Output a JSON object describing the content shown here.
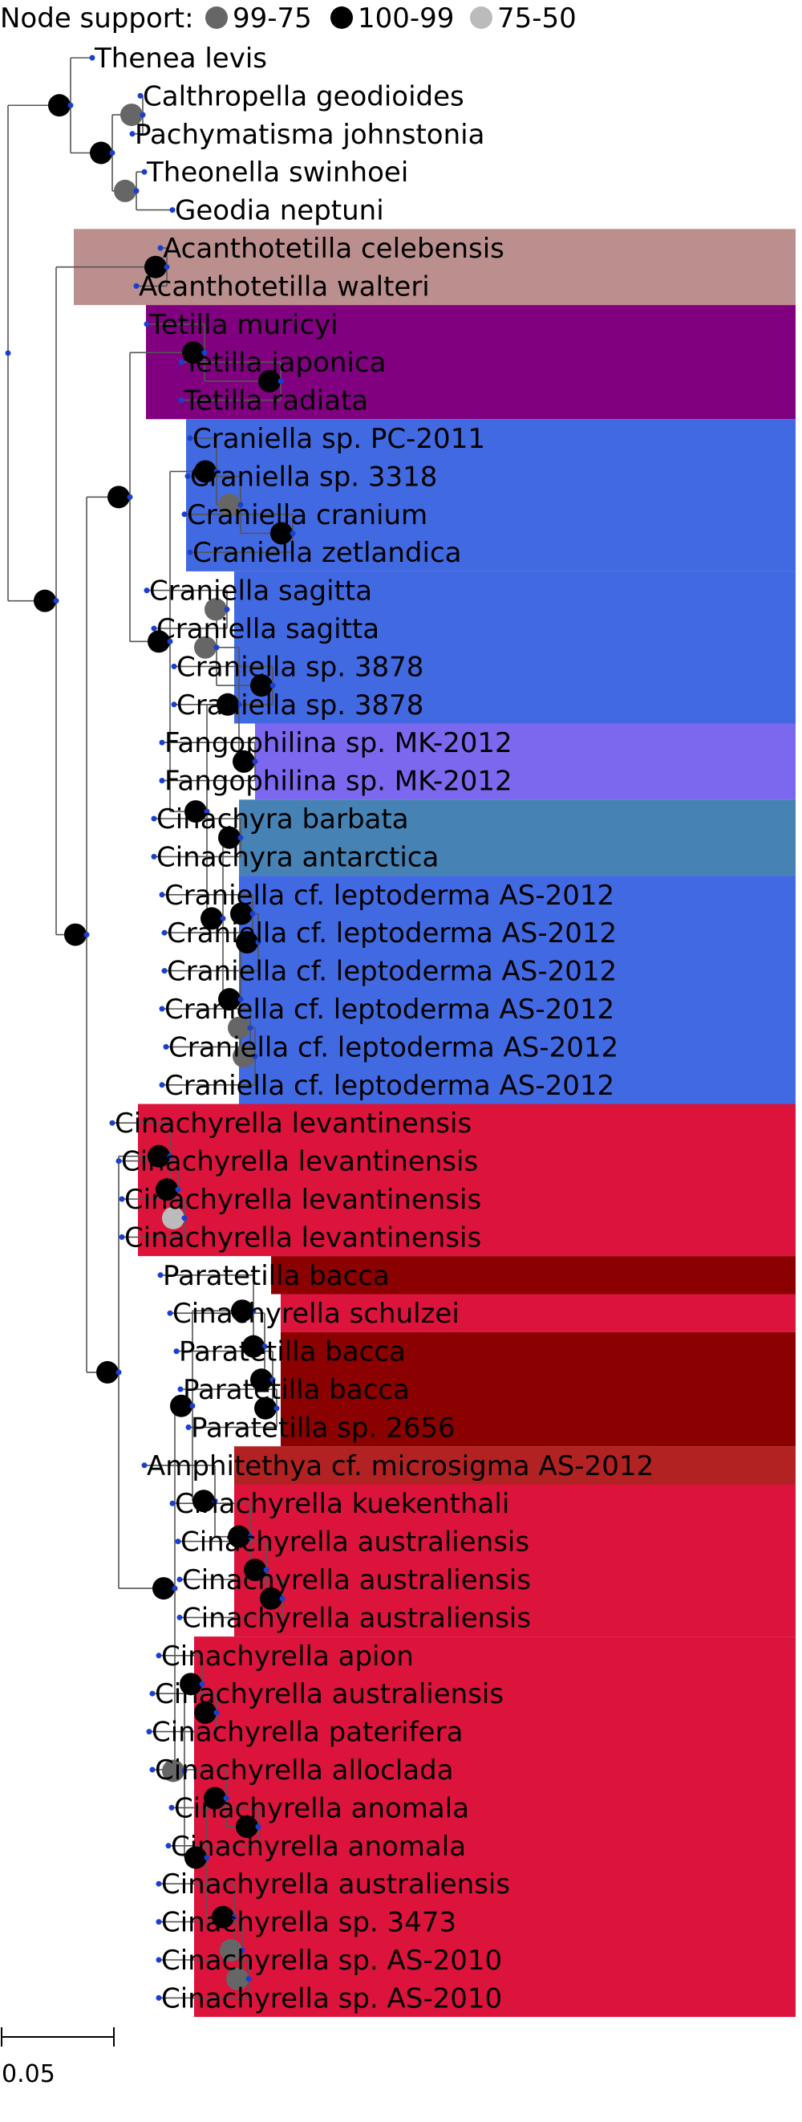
{
  "legend": {
    "title": "Node support:",
    "items": [
      {
        "label": "99-75",
        "color": "#666666"
      },
      {
        "label": "100-99",
        "color": "#000000"
      },
      {
        "label": "75-50",
        "color": "#bbbbbb"
      }
    ]
  },
  "scale_bar": {
    "label": "0.05"
  },
  "colors": {
    "dot": "#1a3fcf",
    "acanthotetilla": "#bc8f8f",
    "tetilla": "#800080",
    "craniella": "#4169e1",
    "fangophilina": "#7b68ee",
    "cinachyra": "#4682b4",
    "cinachyrella": "#dc143c",
    "paratetilla": "#8b0000",
    "amphitethya": "#b22222",
    "support_high": "#000000",
    "support_mid": "#666666",
    "support_low": "#bbbbbb"
  },
  "taxa": [
    "Thenea levis",
    "Calthropella geodioides",
    "Pachymatisma johnstonia",
    "Theonella swinhoei",
    "Geodia neptuni",
    "Acanthotetilla celebensis",
    "Acanthotetilla walteri",
    "Tetilla muricyi",
    "Tetilla japonica",
    "Tetilla radiata",
    "Craniella sp. PC-2011",
    "Craniella sp. 3318",
    "Craniella cranium",
    "Craniella zetlandica",
    "Craniella sagitta",
    "Craniella sagitta",
    "Craniella sp. 3878",
    "Craniella sp. 3878",
    "Fangophilina sp. MK-2012",
    "Fangophilina sp. MK-2012",
    "Cinachyra barbata",
    "Cinachyra antarctica",
    "Craniella cf. leptoderma AS-2012",
    "Craniella cf. leptoderma AS-2012",
    "Craniella cf. leptoderma AS-2012",
    "Craniella cf. leptoderma AS-2012",
    "Craniella cf. leptoderma AS-2012",
    "Craniella cf. leptoderma AS-2012",
    "Cinachyrella levantinensis",
    "Cinachyrella levantinensis",
    "Cinachyrella levantinensis",
    "Cinachyrella levantinensis",
    "Paratetilla bacca",
    "Cinachyrella schulzei",
    "Paratetilla bacca",
    "Paratetilla bacca",
    "Paratetilla sp. 2656",
    "Amphitethya cf. microsigma AS-2012",
    "Cinachyrella kuekenthali",
    "Cinachyrella australiensis",
    "Cinachyrella australiensis",
    "Cinachyrella australiensis",
    "Cinachyrella apion",
    "Cinachyrella australiensis",
    "Cinachyrella paterifera",
    "Cinachyrella alloclada",
    "Cinachyrella anomala",
    "Cinachyrella anomala",
    "Cinachyrella australiensis",
    "Cinachyrella sp. 3473",
    "Cinachyrella sp. AS-2010",
    "Cinachyrella sp. AS-2010"
  ]
}
